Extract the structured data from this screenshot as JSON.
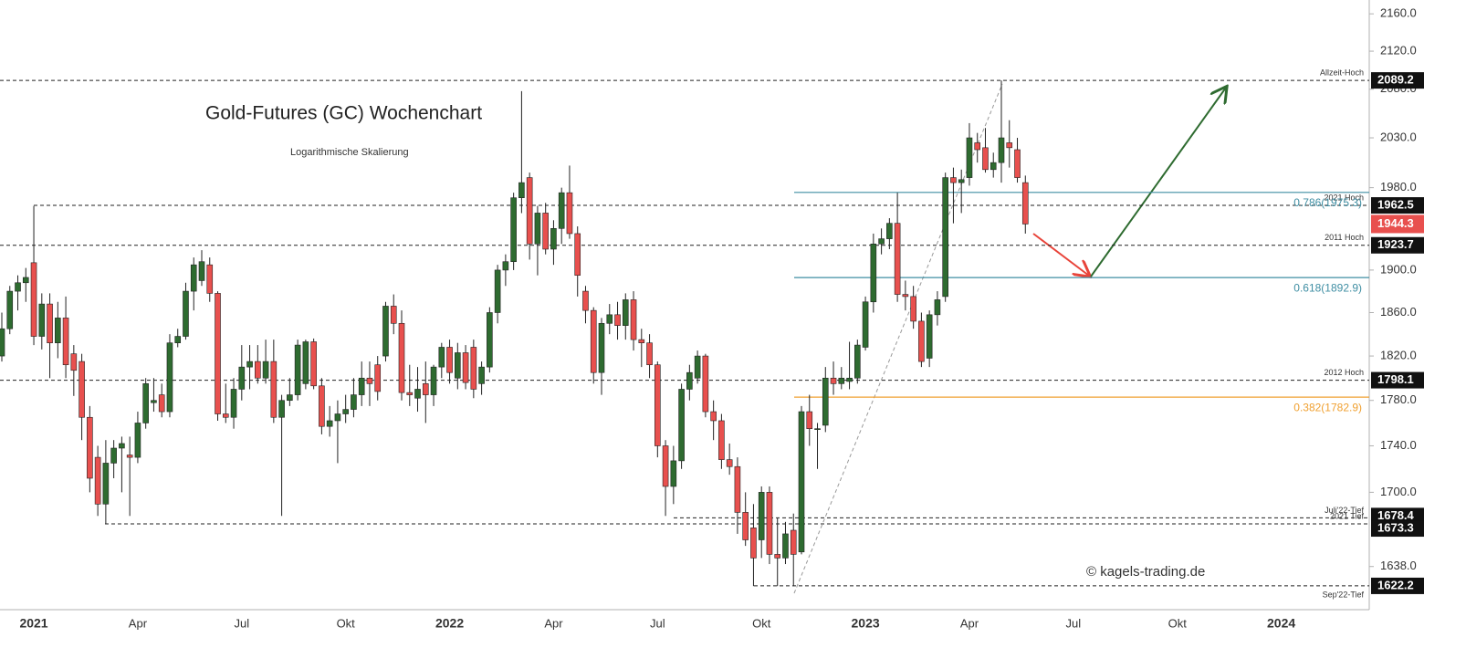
{
  "chart_data": {
    "type": "candlestick",
    "title": "Gold-Futures (GC) Wochenchart",
    "subtitle": "Logarithmische Skalierung",
    "watermark": "© kagels-trading.de",
    "log": true,
    "grid": false,
    "up_color": "#2e6b30",
    "down_color": "#e8504e",
    "ylim": [
      1603,
      2175
    ],
    "yticks": [
      {
        "value": 2160,
        "label": "2160.0"
      },
      {
        "value": 2120,
        "label": "2120.0"
      },
      {
        "value": 2080,
        "label": "2080.0"
      },
      {
        "value": 2030,
        "label": "2030.0"
      },
      {
        "value": 1980,
        "label": "1980.0"
      },
      {
        "value": 1900,
        "label": "1900.0"
      },
      {
        "value": 1860,
        "label": "1860.0"
      },
      {
        "value": 1820,
        "label": "1820.0"
      },
      {
        "value": 1780,
        "label": "1780.0"
      },
      {
        "value": 1740,
        "label": "1740.0"
      },
      {
        "value": 1700,
        "label": "1700.0"
      },
      {
        "value": 1638,
        "label": "1638.0"
      }
    ],
    "categories": [
      null,
      null,
      null,
      null,
      "2021",
      null,
      null,
      null,
      null,
      null,
      null,
      null,
      null,
      null,
      null,
      null,
      null,
      "Apr",
      null,
      null,
      null,
      null,
      null,
      null,
      null,
      null,
      null,
      null,
      null,
      null,
      "Jul",
      null,
      null,
      null,
      null,
      null,
      null,
      null,
      null,
      null,
      null,
      null,
      null,
      "Okt",
      null,
      null,
      null,
      null,
      null,
      null,
      null,
      null,
      null,
      null,
      null,
      null,
      "2022",
      null,
      null,
      null,
      null,
      null,
      null,
      null,
      null,
      null,
      null,
      null,
      null,
      "Apr",
      null,
      null,
      null,
      null,
      null,
      null,
      null,
      null,
      null,
      null,
      null,
      null,
      "Jul",
      null,
      null,
      null,
      null,
      null,
      null,
      null,
      null,
      null,
      null,
      null,
      null,
      "Okt",
      null,
      null,
      null,
      null,
      null,
      null,
      null,
      null,
      null,
      null,
      null,
      null,
      "2023",
      null,
      null,
      null,
      null,
      null,
      null,
      null,
      null,
      null,
      null,
      null,
      null,
      "Apr",
      null,
      null,
      null,
      null,
      null,
      null,
      null,
      null,
      null,
      null,
      null,
      null,
      "Jul",
      null,
      null,
      null,
      null,
      null,
      null,
      null,
      null,
      null,
      null,
      null,
      null,
      "Okt",
      null,
      null,
      null,
      null,
      null,
      null,
      null,
      null,
      null,
      null,
      null,
      null,
      "2024",
      null,
      null,
      null,
      null,
      null,
      null,
      null,
      null,
      null,
      null
    ],
    "candles": [
      [
        1820,
        1860,
        1815,
        1845
      ],
      [
        1845,
        1885,
        1840,
        1880
      ],
      [
        1880,
        1895,
        1862,
        1888
      ],
      [
        1888,
        1902,
        1870,
        1893
      ],
      [
        1907,
        1962,
        1830,
        1838
      ],
      [
        1838,
        1878,
        1826,
        1868
      ],
      [
        1868,
        1878,
        1800,
        1832
      ],
      [
        1832,
        1870,
        1818,
        1855
      ],
      [
        1855,
        1875,
        1800,
        1812
      ],
      [
        1822,
        1830,
        1784,
        1807
      ],
      [
        1815,
        1822,
        1745,
        1765
      ],
      [
        1765,
        1775,
        1700,
        1712
      ],
      [
        1730,
        1740,
        1680,
        1690
      ],
      [
        1690,
        1745,
        1673,
        1725
      ],
      [
        1725,
        1745,
        1712,
        1738
      ],
      [
        1738,
        1748,
        1700,
        1742
      ],
      [
        1732,
        1748,
        1680,
        1730
      ],
      [
        1730,
        1770,
        1725,
        1760
      ],
      [
        1760,
        1800,
        1755,
        1795
      ],
      [
        1778,
        1800,
        1770,
        1780
      ],
      [
        1785,
        1795,
        1765,
        1770
      ],
      [
        1770,
        1840,
        1765,
        1832
      ],
      [
        1832,
        1845,
        1828,
        1838
      ],
      [
        1838,
        1888,
        1835,
        1880
      ],
      [
        1880,
        1912,
        1862,
        1905
      ],
      [
        1890,
        1919,
        1885,
        1908
      ],
      [
        1905,
        1912,
        1870,
        1878
      ],
      [
        1878,
        1880,
        1762,
        1768
      ],
      [
        1768,
        1795,
        1760,
        1765
      ],
      [
        1765,
        1800,
        1755,
        1790
      ],
      [
        1790,
        1830,
        1780,
        1810
      ],
      [
        1810,
        1830,
        1790,
        1815
      ],
      [
        1815,
        1830,
        1795,
        1800
      ],
      [
        1800,
        1835,
        1795,
        1815
      ],
      [
        1815,
        1835,
        1760,
        1765
      ],
      [
        1765,
        1785,
        1680,
        1780
      ],
      [
        1780,
        1800,
        1775,
        1785
      ],
      [
        1785,
        1835,
        1780,
        1830
      ],
      [
        1795,
        1835,
        1790,
        1833
      ],
      [
        1833,
        1836,
        1790,
        1793
      ],
      [
        1793,
        1800,
        1750,
        1757
      ],
      [
        1757,
        1775,
        1748,
        1762
      ],
      [
        1762,
        1780,
        1725,
        1768
      ],
      [
        1768,
        1785,
        1760,
        1772
      ],
      [
        1772,
        1800,
        1765,
        1785
      ],
      [
        1785,
        1815,
        1775,
        1800
      ],
      [
        1800,
        1815,
        1775,
        1795
      ],
      [
        1812,
        1820,
        1780,
        1788
      ],
      [
        1820,
        1870,
        1815,
        1866
      ],
      [
        1866,
        1877,
        1840,
        1850
      ],
      [
        1850,
        1862,
        1780,
        1787
      ],
      [
        1787,
        1812,
        1775,
        1785
      ],
      [
        1782,
        1810,
        1770,
        1790
      ],
      [
        1795,
        1815,
        1760,
        1785
      ],
      [
        1785,
        1812,
        1775,
        1810
      ],
      [
        1810,
        1832,
        1800,
        1828
      ],
      [
        1828,
        1835,
        1795,
        1805
      ],
      [
        1800,
        1832,
        1790,
        1823
      ],
      [
        1823,
        1830,
        1790,
        1796
      ],
      [
        1828,
        1835,
        1782,
        1790
      ],
      [
        1795,
        1815,
        1785,
        1810
      ],
      [
        1810,
        1865,
        1805,
        1860
      ],
      [
        1860,
        1905,
        1850,
        1900
      ],
      [
        1900,
        1915,
        1885,
        1908
      ],
      [
        1908,
        1975,
        1900,
        1970
      ],
      [
        1970,
        2078,
        1955,
        1985
      ],
      [
        1990,
        1995,
        1910,
        1925
      ],
      [
        1925,
        1962,
        1895,
        1955
      ],
      [
        1955,
        1965,
        1915,
        1920
      ],
      [
        1920,
        1948,
        1905,
        1940
      ],
      [
        1940,
        1980,
        1925,
        1975
      ],
      [
        1975,
        2002,
        1930,
        1935
      ],
      [
        1935,
        1942,
        1875,
        1895
      ],
      [
        1880,
        1885,
        1850,
        1862
      ],
      [
        1862,
        1865,
        1795,
        1805
      ],
      [
        1805,
        1855,
        1785,
        1850
      ],
      [
        1850,
        1868,
        1840,
        1858
      ],
      [
        1858,
        1870,
        1835,
        1848
      ],
      [
        1848,
        1878,
        1835,
        1872
      ],
      [
        1872,
        1880,
        1825,
        1835
      ],
      [
        1835,
        1845,
        1810,
        1832
      ],
      [
        1832,
        1840,
        1800,
        1812
      ],
      [
        1812,
        1815,
        1730,
        1740
      ],
      [
        1740,
        1745,
        1680,
        1705
      ],
      [
        1705,
        1740,
        1690,
        1727
      ],
      [
        1727,
        1795,
        1720,
        1790
      ],
      [
        1790,
        1812,
        1780,
        1805
      ],
      [
        1800,
        1825,
        1795,
        1820
      ],
      [
        1820,
        1822,
        1765,
        1770
      ],
      [
        1770,
        1780,
        1745,
        1762
      ],
      [
        1762,
        1768,
        1720,
        1728
      ],
      [
        1728,
        1742,
        1715,
        1722
      ],
      [
        1722,
        1730,
        1665,
        1683
      ],
      [
        1683,
        1700,
        1655,
        1660
      ],
      [
        1670,
        1690,
        1622,
        1645
      ],
      [
        1660,
        1705,
        1645,
        1700
      ],
      [
        1700,
        1705,
        1640,
        1648
      ],
      [
        1648,
        1678,
        1622,
        1645
      ],
      [
        1645,
        1675,
        1640,
        1665
      ],
      [
        1668,
        1682,
        1622,
        1648
      ],
      [
        1650,
        1775,
        1648,
        1770
      ],
      [
        1770,
        1785,
        1740,
        1755
      ],
      [
        1755,
        1760,
        1720,
        1755
      ],
      [
        1758,
        1810,
        1752,
        1800
      ],
      [
        1800,
        1815,
        1785,
        1795
      ],
      [
        1795,
        1810,
        1790,
        1800
      ],
      [
        1797,
        1833,
        1790,
        1800
      ],
      [
        1800,
        1835,
        1795,
        1830
      ],
      [
        1828,
        1875,
        1825,
        1870
      ],
      [
        1870,
        1935,
        1860,
        1925
      ],
      [
        1925,
        1940,
        1915,
        1930
      ],
      [
        1930,
        1950,
        1920,
        1945
      ],
      [
        1945,
        1975,
        1870,
        1877
      ],
      [
        1877,
        1890,
        1862,
        1875
      ],
      [
        1875,
        1885,
        1845,
        1852
      ],
      [
        1852,
        1860,
        1810,
        1815
      ],
      [
        1818,
        1862,
        1810,
        1858
      ],
      [
        1858,
        1880,
        1848,
        1872
      ],
      [
        1875,
        1995,
        1870,
        1990
      ],
      [
        1990,
        2000,
        1945,
        1985
      ],
      [
        1985,
        1998,
        1955,
        1988
      ],
      [
        1990,
        2045,
        1982,
        2030
      ],
      [
        2025,
        2035,
        2005,
        2018
      ],
      [
        2020,
        2040,
        1995,
        1998
      ],
      [
        1998,
        2015,
        1990,
        2005
      ],
      [
        2005,
        2089.2,
        1985,
        2030
      ],
      [
        2025,
        2048,
        2000,
        2020
      ],
      [
        2018,
        2030,
        1985,
        1990
      ],
      [
        1985,
        1992,
        1935,
        1944.3
      ],
      null,
      null,
      null,
      null,
      null,
      null,
      null,
      null,
      null,
      null,
      null,
      null,
      null,
      null,
      null,
      null,
      null,
      null,
      null,
      null,
      null,
      null,
      null,
      null,
      null,
      null,
      null,
      null,
      null,
      null,
      null,
      null,
      null,
      null,
      null,
      null,
      null,
      null,
      null,
      null,
      null,
      null
    ],
    "levels": [
      {
        "value": 2089.2,
        "name": "Allzeit-Hoch"
      },
      {
        "value": 1962.5,
        "name": "2021 Hoch"
      },
      {
        "value": 1923.7,
        "name": "2011 Hoch"
      },
      {
        "value": 1798.1,
        "name": "2012 Hoch"
      },
      {
        "value": 1678.4,
        "name": "Juli'22-Tief"
      },
      {
        "value": 1673.3,
        "name": "2021 Tief"
      },
      {
        "value": 1622.2,
        "name": "Sep'22-Tief"
      }
    ],
    "last_price": 1944.3,
    "fib_levels": [
      {
        "value": 1975.3,
        "label": "0.786(1975.3)",
        "color": "#3f8ea3"
      },
      {
        "value": 1892.9,
        "label": "0.618(1892.9)",
        "color": "#3f8ea3"
      },
      {
        "value": 1782.9,
        "label": "0.382(1782.9)",
        "color": "#f0a030"
      }
    ]
  }
}
